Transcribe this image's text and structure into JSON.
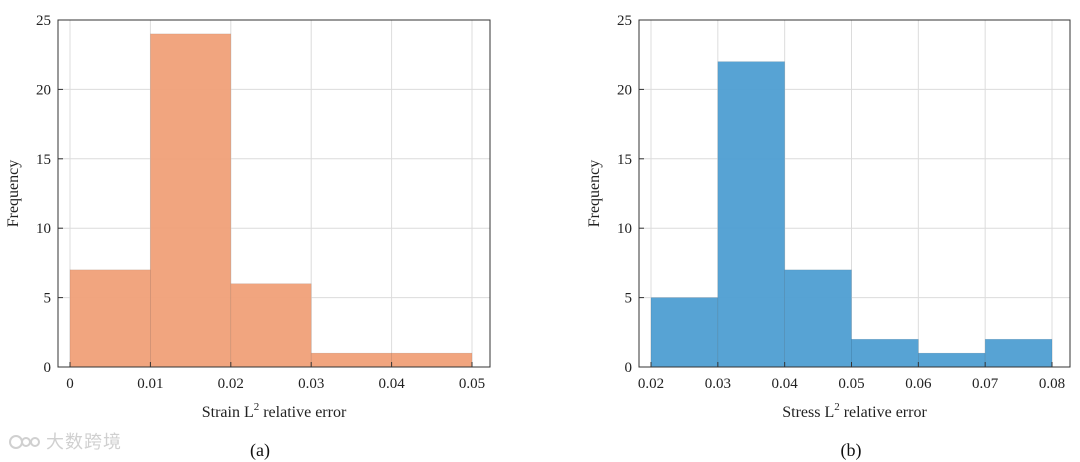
{
  "watermark": {
    "text": "大数跨境",
    "icon": "brand-logo-icon"
  },
  "chart_data": [
    {
      "type": "bar",
      "panel_label": "(a)",
      "xlabel_prefix": "Strain L",
      "xlabel_sup": "2",
      "xlabel_suffix": " relative error",
      "ylabel": "Frequency",
      "bin_edges": [
        0,
        0.01,
        0.02,
        0.03,
        0.04,
        0.05
      ],
      "values": [
        7,
        24,
        6,
        1,
        1
      ],
      "xlim": [
        0,
        0.05
      ],
      "ylim": [
        0,
        25
      ],
      "xticks": [
        0,
        0.01,
        0.02,
        0.03,
        0.04,
        0.05
      ],
      "xtick_labels": [
        "0",
        "0.01",
        "0.02",
        "0.03",
        "0.04",
        "0.05"
      ],
      "yticks": [
        0,
        5,
        10,
        15,
        20,
        25
      ],
      "ytick_labels": [
        "0",
        "5",
        "10",
        "15",
        "20",
        "25"
      ],
      "grid": true,
      "color": "#f0a078"
    },
    {
      "type": "bar",
      "panel_label": "(b)",
      "xlabel_prefix": "Stress L",
      "xlabel_sup": "2",
      "xlabel_suffix": " relative error",
      "ylabel": "Frequency",
      "bin_edges": [
        0.02,
        0.03,
        0.04,
        0.05,
        0.06,
        0.07,
        0.08
      ],
      "values": [
        5,
        22,
        7,
        2,
        1,
        2
      ],
      "xlim": [
        0.02,
        0.08
      ],
      "ylim": [
        0,
        25
      ],
      "xticks": [
        0.02,
        0.03,
        0.04,
        0.05,
        0.06,
        0.07,
        0.08
      ],
      "xtick_labels": [
        "0.02",
        "0.03",
        "0.04",
        "0.05",
        "0.06",
        "0.07",
        "0.08"
      ],
      "yticks": [
        0,
        5,
        10,
        15,
        20,
        25
      ],
      "ytick_labels": [
        "0",
        "5",
        "10",
        "15",
        "20",
        "25"
      ],
      "grid": true,
      "color": "#4e9ed2"
    }
  ]
}
